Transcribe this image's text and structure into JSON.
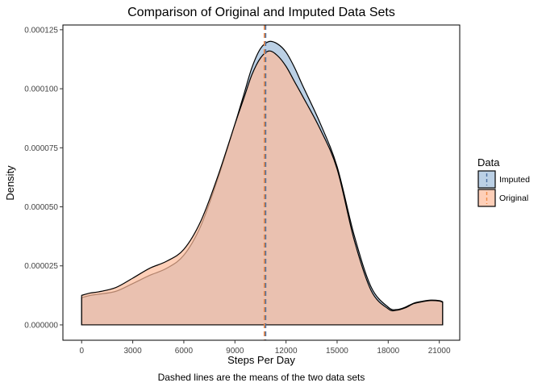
{
  "chart_data": {
    "type": "area",
    "title": "Comparison of Original and Imputed Data Sets",
    "xlabel": "Steps Per Day",
    "ylabel": "Density",
    "caption": "Dashed lines are the means of the two data sets",
    "xlim": [
      -1100,
      22200
    ],
    "ylim": [
      -6.5e-06,
      0.000127
    ],
    "x_ticks": [
      0,
      3000,
      6000,
      9000,
      12000,
      15000,
      18000,
      21000
    ],
    "x_tick_labels": [
      "0",
      "3000",
      "6000",
      "9000",
      "12000",
      "15000",
      "18000",
      "21000"
    ],
    "y_ticks": [
      0,
      2.5e-05,
      5e-05,
      7.5e-05,
      0.0001,
      0.000125
    ],
    "y_tick_labels": [
      "0.000000",
      "0.000025",
      "0.000050",
      "0.000075",
      "0.000100",
      "0.000125"
    ],
    "grid": false,
    "legend": {
      "title": "Data",
      "position": "right"
    },
    "series": [
      {
        "name": "Imputed",
        "color": "#9ebcda",
        "mean": 10766,
        "x": [
          0,
          500,
          1000,
          2000,
          3000,
          4000,
          5000,
          6000,
          7000,
          8000,
          9000,
          9500,
          10000,
          10500,
          11000,
          11500,
          12000,
          12500,
          13000,
          14000,
          15000,
          16000,
          17000,
          18000,
          18500,
          19000,
          19500,
          20000,
          20500,
          21000,
          21194
        ],
        "y": [
          1.15e-05,
          1.25e-05,
          1.3e-05,
          1.42e-05,
          1.75e-05,
          2.1e-05,
          2.4e-05,
          2.95e-05,
          4.2e-05,
          6.2e-05,
          8.5e-05,
          9.7e-05,
          0.000109,
          0.000117,
          0.00012,
          0.000119,
          0.0001155,
          0.000109,
          0.000101,
          8.55e-05,
          6.7e-05,
          3.8e-05,
          1.6e-05,
          7.5e-06,
          6.5e-06,
          7.5e-06,
          9.2e-06,
          1e-05,
          1.05e-05,
          1.03e-05,
          9.8e-06
        ]
      },
      {
        "name": "Original",
        "color": "#fdbb9a",
        "mean": 10766,
        "x": [
          0,
          500,
          1000,
          2000,
          3000,
          4000,
          5000,
          6000,
          7000,
          8000,
          9000,
          9500,
          10000,
          10500,
          11000,
          11500,
          12000,
          12500,
          13000,
          14000,
          15000,
          16000,
          17000,
          18000,
          18500,
          19000,
          19500,
          20000,
          20500,
          21000,
          21194
        ],
        "y": [
          1.25e-05,
          1.35e-05,
          1.4e-05,
          1.58e-05,
          1.98e-05,
          2.4e-05,
          2.7e-05,
          3.2e-05,
          4.4e-05,
          6.3e-05,
          8.5e-05,
          9.55e-05,
          0.000106,
          0.000113,
          0.000116,
          0.000114,
          0.0001095,
          0.000103,
          9.65e-05,
          8.3e-05,
          6.6e-05,
          3.6e-05,
          1.45e-05,
          6.8e-06,
          6.2e-06,
          7.2e-06,
          9e-06,
          9.8e-06,
          1.03e-05,
          1.01e-05,
          9.6e-06
        ]
      }
    ]
  }
}
